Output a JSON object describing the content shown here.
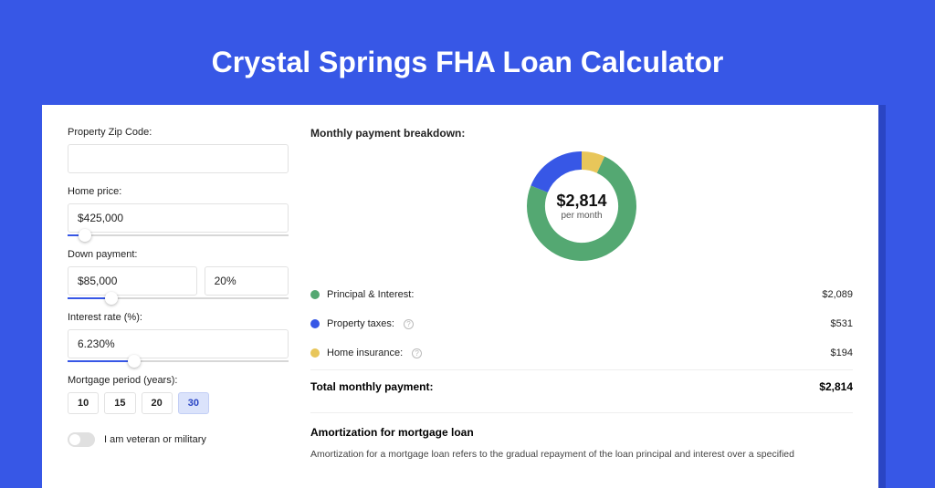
{
  "page": {
    "title": "Crystal Springs FHA Loan Calculator",
    "bg_color": "#3757e6"
  },
  "form": {
    "zip": {
      "label": "Property Zip Code:",
      "value": ""
    },
    "home_price": {
      "label": "Home price:",
      "value": "$425,000",
      "slider_pct": 8
    },
    "down_payment": {
      "label": "Down payment:",
      "value": "$85,000",
      "pct": "20%",
      "slider_pct": 20
    },
    "interest_rate": {
      "label": "Interest rate (%):",
      "value": "6.230%",
      "slider_pct": 30
    },
    "mortgage_period": {
      "label": "Mortgage period (years):",
      "options": [
        "10",
        "15",
        "20",
        "30"
      ],
      "active": "30"
    },
    "veteran": {
      "label": "I am veteran or military",
      "on": false
    }
  },
  "breakdown": {
    "title": "Monthly payment breakdown:",
    "center_amount": "$2,814",
    "center_sub": "per month",
    "items": [
      {
        "label": "Principal & Interest:",
        "value": "$2,089",
        "color": "#54a872",
        "info": false,
        "pct": 74.2
      },
      {
        "label": "Property taxes:",
        "value": "$531",
        "color": "#3757e6",
        "info": true,
        "pct": 18.9
      },
      {
        "label": "Home insurance:",
        "value": "$194",
        "color": "#e8c65a",
        "info": true,
        "pct": 6.9
      }
    ],
    "total_label": "Total monthly payment:",
    "total_value": "$2,814"
  },
  "donut_style": {
    "stroke_width": 20,
    "bg": "#ffffff"
  },
  "amortization": {
    "title": "Amortization for mortgage loan",
    "text": "Amortization for a mortgage loan refers to the gradual repayment of the loan principal and interest over a specified"
  }
}
